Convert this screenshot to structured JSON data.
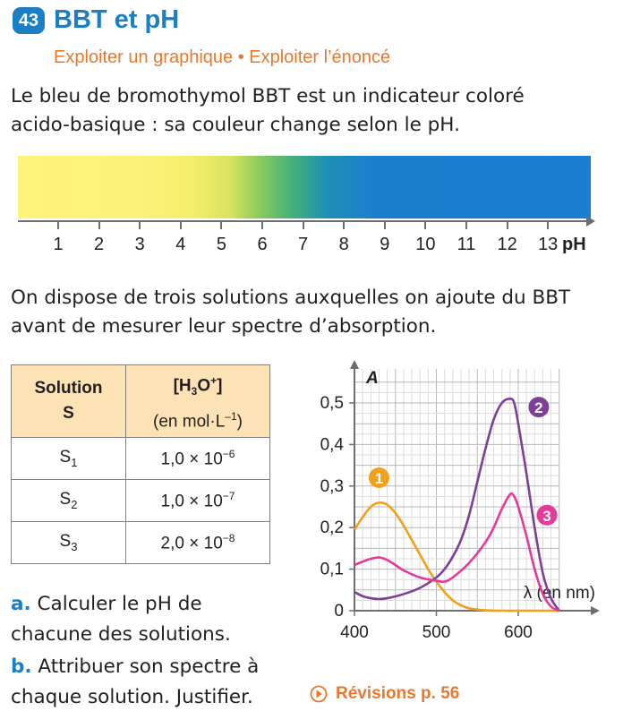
{
  "exercise": {
    "number": "43",
    "title": "BBT et pH",
    "skills": "Exploiter un graphique • Exploiter l’énoncé"
  },
  "intro": {
    "line1": "Le bleu de bromothymol BBT est un indicateur coloré",
    "line2": "acido-basique : sa couleur change selon le pH."
  },
  "ph_scale": {
    "ticks": [
      "1",
      "2",
      "3",
      "4",
      "5",
      "6",
      "7",
      "8",
      "9",
      "10",
      "11",
      "12",
      "13"
    ],
    "unit": "pH",
    "colors": {
      "acid": "#fff37a",
      "transition": "#8ccc5c",
      "basic": "#1a7fd2"
    }
  },
  "setup": {
    "line1": "On dispose de trois solutions auxquelles on ajoute du BBT",
    "line2": "avant de mesurer leur spectre d’absorption."
  },
  "table": {
    "head1_line1": "Solution",
    "head1_line2": "S",
    "head2_unit": "(en mol·L",
    "rows": [
      {
        "sol": "S",
        "sub": "1",
        "mant": "1,0",
        "exp": "−6"
      },
      {
        "sol": "S",
        "sub": "2",
        "mant": "1,0",
        "exp": "−7"
      },
      {
        "sol": "S",
        "sub": "3",
        "mant": "2,0",
        "exp": "−8"
      }
    ]
  },
  "questions": {
    "a_letter": "a.",
    "a_line1": "Calculer le pH de",
    "a_line2": "chacune des solutions.",
    "b_letter": "b.",
    "b_line1": "Attribuer son spectre à",
    "b_line2": "chaque solution. Justifier."
  },
  "revision_link": "Révisions p. 56",
  "chart_data": {
    "type": "line",
    "ylabel": "A",
    "xlabel": "λ (en nm)",
    "xlim": [
      400,
      650
    ],
    "ylim": [
      0,
      0.55
    ],
    "xticks": [
      400,
      500,
      600
    ],
    "yticks": [
      {
        "v": 0,
        "label": "0"
      },
      {
        "v": 0.1,
        "label": "0,1"
      },
      {
        "v": 0.2,
        "label": "0,2"
      },
      {
        "v": 0.3,
        "label": "0,3"
      },
      {
        "v": 0.4,
        "label": "0,4"
      },
      {
        "v": 0.5,
        "label": "0,5"
      }
    ],
    "grid": true,
    "series": [
      {
        "name": "1",
        "color": "#f29f1c",
        "points": [
          [
            400,
            0.195
          ],
          [
            410,
            0.225
          ],
          [
            420,
            0.25
          ],
          [
            430,
            0.26
          ],
          [
            440,
            0.255
          ],
          [
            450,
            0.235
          ],
          [
            460,
            0.205
          ],
          [
            470,
            0.17
          ],
          [
            480,
            0.135
          ],
          [
            490,
            0.1
          ],
          [
            500,
            0.07
          ],
          [
            510,
            0.045
          ],
          [
            520,
            0.025
          ],
          [
            530,
            0.013
          ],
          [
            540,
            0.006
          ],
          [
            560,
            0.001
          ],
          [
            580,
            0
          ],
          [
            600,
            0
          ],
          [
            650,
            0
          ]
        ],
        "label_at": [
          430,
          0.32
        ]
      },
      {
        "name": "2",
        "color": "#7d3f98",
        "points": [
          [
            400,
            0.045
          ],
          [
            410,
            0.035
          ],
          [
            420,
            0.03
          ],
          [
            430,
            0.028
          ],
          [
            440,
            0.03
          ],
          [
            460,
            0.04
          ],
          [
            480,
            0.055
          ],
          [
            500,
            0.08
          ],
          [
            510,
            0.1
          ],
          [
            520,
            0.13
          ],
          [
            530,
            0.17
          ],
          [
            540,
            0.23
          ],
          [
            550,
            0.31
          ],
          [
            560,
            0.39
          ],
          [
            570,
            0.46
          ],
          [
            580,
            0.5
          ],
          [
            590,
            0.51
          ],
          [
            595,
            0.5
          ],
          [
            600,
            0.45
          ],
          [
            610,
            0.33
          ],
          [
            620,
            0.2
          ],
          [
            630,
            0.09
          ],
          [
            640,
            0.03
          ],
          [
            650,
            0
          ]
        ],
        "label_at": [
          625,
          0.49
        ]
      },
      {
        "name": "3",
        "color": "#e5399b",
        "points": [
          [
            400,
            0.11
          ],
          [
            410,
            0.118
          ],
          [
            420,
            0.125
          ],
          [
            430,
            0.128
          ],
          [
            440,
            0.122
          ],
          [
            450,
            0.11
          ],
          [
            460,
            0.097
          ],
          [
            480,
            0.08
          ],
          [
            500,
            0.072
          ],
          [
            510,
            0.07
          ],
          [
            520,
            0.08
          ],
          [
            540,
            0.115
          ],
          [
            560,
            0.165
          ],
          [
            570,
            0.2
          ],
          [
            580,
            0.245
          ],
          [
            590,
            0.28
          ],
          [
            595,
            0.275
          ],
          [
            600,
            0.25
          ],
          [
            610,
            0.18
          ],
          [
            620,
            0.1
          ],
          [
            630,
            0.04
          ],
          [
            640,
            0.01
          ],
          [
            650,
            0
          ]
        ],
        "label_at": [
          635,
          0.23
        ]
      }
    ]
  }
}
